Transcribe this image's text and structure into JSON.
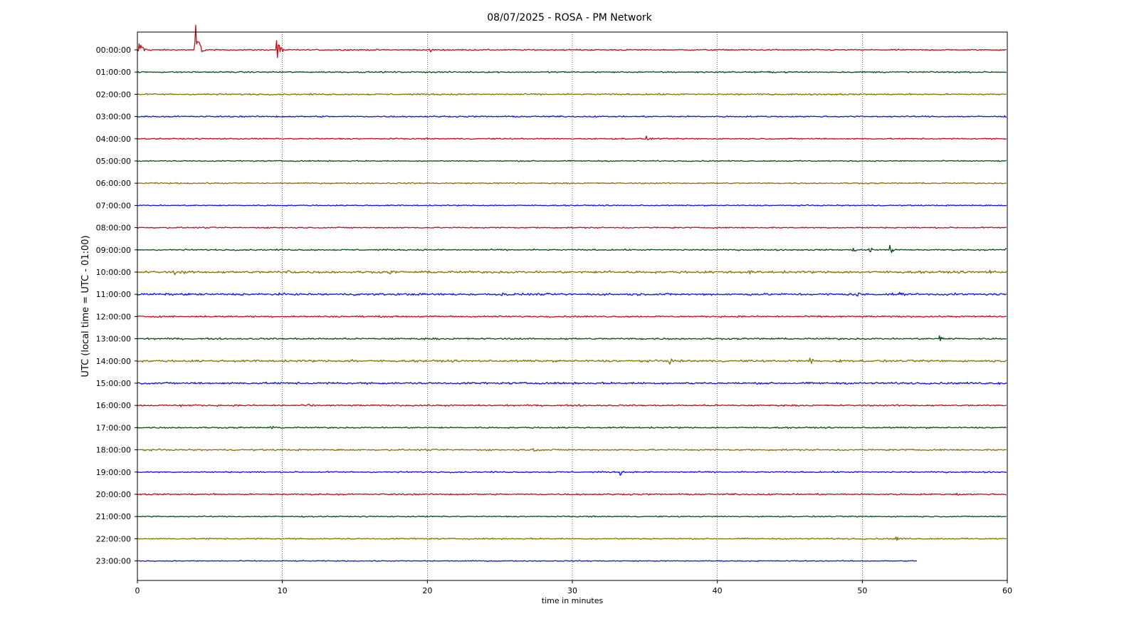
{
  "chart_data": {
    "type": "line",
    "title": "08/07/2025 - ROSA - PM Network",
    "xlabel": "time in minutes",
    "ylabel": "UTC (local time = UTC - 01:00)",
    "xlim": [
      0,
      60
    ],
    "x_ticks": [
      "0",
      "10",
      "20",
      "30",
      "40",
      "50",
      "60"
    ],
    "x_tick_values": [
      0,
      10,
      20,
      30,
      40,
      50,
      60
    ],
    "grid": "vertical dotted lines at x ticks",
    "legend": "none",
    "colors": [
      "#bf0d1a",
      "#0a4d14",
      "#857200",
      "#1010ee"
    ],
    "series": [
      {
        "hour": "00:00:00",
        "end_minute": 60,
        "events": [
          [
            0.1,
            18
          ],
          [
            4.0,
            48
          ],
          [
            9.6,
            22
          ],
          [
            20.2,
            5
          ]
        ],
        "noise": 1.2
      },
      {
        "hour": "01:00:00",
        "end_minute": 60,
        "events": [],
        "noise": 1.3
      },
      {
        "hour": "02:00:00",
        "end_minute": 60,
        "events": [],
        "noise": 1.4
      },
      {
        "hour": "03:00:00",
        "end_minute": 60,
        "events": [],
        "noise": 1.3
      },
      {
        "hour": "04:00:00",
        "end_minute": 60,
        "events": [
          [
            35.1,
            4
          ]
        ],
        "noise": 1.2
      },
      {
        "hour": "05:00:00",
        "end_minute": 60,
        "events": [],
        "noise": 1.1
      },
      {
        "hour": "06:00:00",
        "end_minute": 60,
        "events": [
          [
            25.9,
            4
          ]
        ],
        "noise": 1.2
      },
      {
        "hour": "07:00:00",
        "end_minute": 60,
        "events": [],
        "noise": 1.1
      },
      {
        "hour": "08:00:00",
        "end_minute": 60,
        "events": [],
        "noise": 1.2
      },
      {
        "hour": "09:00:00",
        "end_minute": 60,
        "events": [
          [
            49.3,
            4
          ],
          [
            50.5,
            5
          ],
          [
            51.9,
            7
          ],
          [
            59.9,
            4
          ]
        ],
        "noise": 1.3
      },
      {
        "hour": "10:00:00",
        "end_minute": 60,
        "events": [
          [
            2.5,
            4
          ],
          [
            3.2,
            4
          ],
          [
            10.4,
            4
          ],
          [
            17.3,
            3
          ],
          [
            32.4,
            4
          ],
          [
            39.8,
            4
          ],
          [
            42.2,
            5
          ],
          [
            58.8,
            4
          ]
        ],
        "noise": 2.2
      },
      {
        "hour": "11:00:00",
        "end_minute": 60,
        "events": [
          [
            9.7,
            4
          ],
          [
            25.1,
            4
          ],
          [
            34.2,
            3
          ],
          [
            49.6,
            5
          ],
          [
            52.5,
            4
          ]
        ],
        "noise": 2.0
      },
      {
        "hour": "12:00:00",
        "end_minute": 60,
        "events": [],
        "noise": 1.5
      },
      {
        "hour": "13:00:00",
        "end_minute": 60,
        "events": [
          [
            26.4,
            4
          ],
          [
            55.3,
            5
          ]
        ],
        "noise": 1.6
      },
      {
        "hour": "14:00:00",
        "end_minute": 60,
        "events": [
          [
            14.8,
            4
          ],
          [
            36.7,
            4
          ],
          [
            46.4,
            5
          ],
          [
            48.4,
            3
          ]
        ],
        "noise": 1.9
      },
      {
        "hour": "15:00:00",
        "end_minute": 60,
        "events": [
          [
            38.3,
            3
          ],
          [
            59.4,
            3
          ]
        ],
        "noise": 1.9
      },
      {
        "hour": "16:00:00",
        "end_minute": 60,
        "events": [
          [
            2.9,
            3
          ],
          [
            11.8,
            4
          ]
        ],
        "noise": 1.5
      },
      {
        "hour": "17:00:00",
        "end_minute": 60,
        "events": [
          [
            9.2,
            5
          ]
        ],
        "noise": 1.3
      },
      {
        "hour": "18:00:00",
        "end_minute": 60,
        "events": [
          [
            27.3,
            3
          ]
        ],
        "noise": 1.5
      },
      {
        "hour": "19:00:00",
        "end_minute": 60,
        "events": [
          [
            33.3,
            4
          ]
        ],
        "noise": 1.3
      },
      {
        "hour": "20:00:00",
        "end_minute": 60,
        "events": [
          [
            56.5,
            3
          ]
        ],
        "noise": 1.4
      },
      {
        "hour": "21:00:00",
        "end_minute": 60,
        "events": [],
        "noise": 1.1
      },
      {
        "hour": "22:00:00",
        "end_minute": 60,
        "events": [
          [
            52.3,
            4
          ]
        ],
        "noise": 1.2
      },
      {
        "hour": "23:00:00",
        "end_minute": 53.8,
        "events": [],
        "noise": 0.9
      }
    ]
  }
}
